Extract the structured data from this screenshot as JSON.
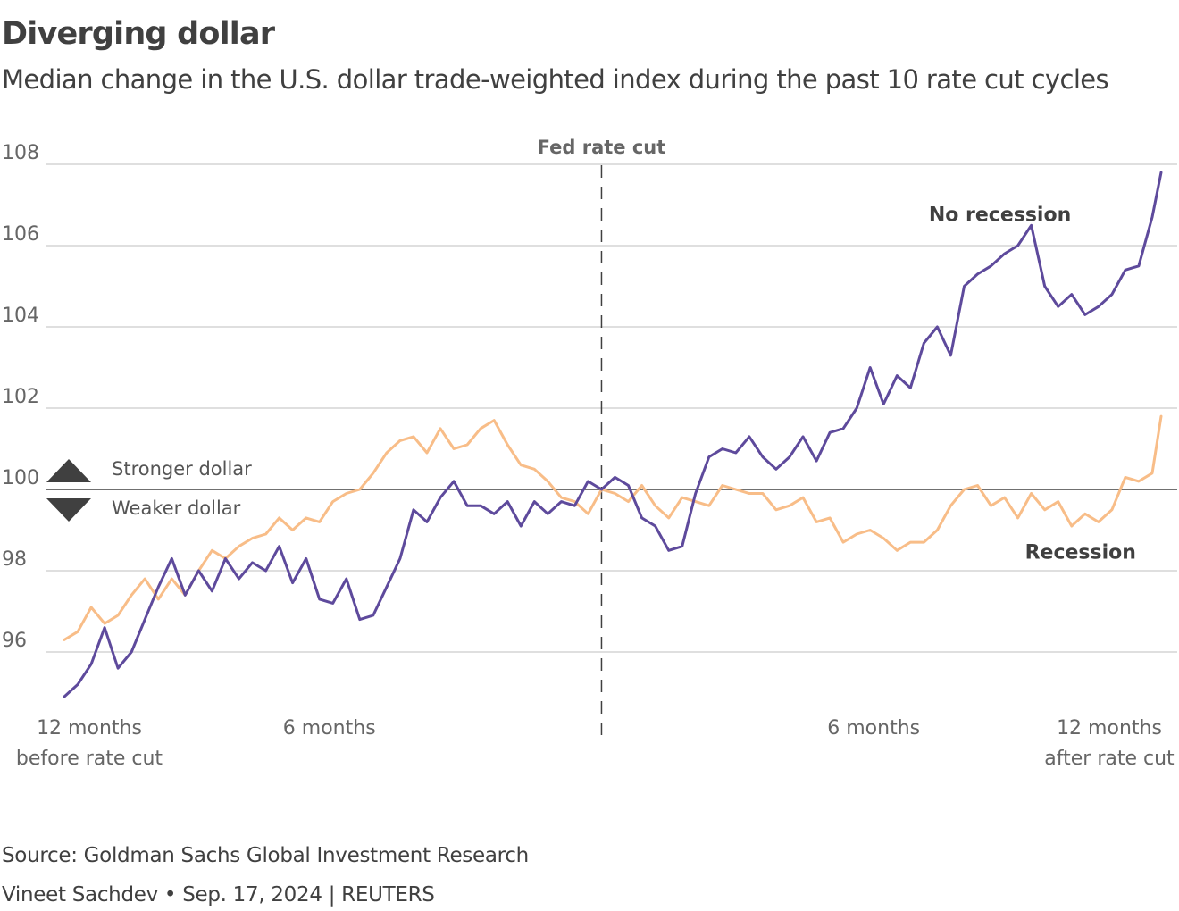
{
  "header": {
    "title": "Diverging dollar",
    "subtitle": "Median change in the U.S. dollar trade-weighted index during the past 10 rate cut cycles"
  },
  "footer": {
    "source": "Source: Goldman Sachs Global Investment Research",
    "byline": "Vineet Sachdev • Sep. 17, 2024 | REUTERS"
  },
  "annotations": {
    "fed_rate_cut": "Fed rate cut",
    "stronger": "Stronger dollar",
    "weaker": "Weaker dollar"
  },
  "chart_data": {
    "type": "line",
    "title": "Diverging dollar",
    "xlabel": "",
    "ylabel": "",
    "xlim": [
      -12,
      12.5
    ],
    "ylim": [
      95,
      108
    ],
    "yticks": [
      96,
      98,
      100,
      102,
      104,
      106,
      108
    ],
    "yticklabels": [
      "96",
      "98",
      "100",
      "102",
      "104",
      "106",
      "108"
    ],
    "baseline": 100,
    "event_x": 0,
    "xticks": [
      {
        "x": -12,
        "line1": "12 months",
        "line2": "before rate cut"
      },
      {
        "x": -6,
        "line1": "6 months",
        "line2": ""
      },
      {
        "x": 6,
        "line1": "6 months",
        "line2": ""
      },
      {
        "x": 12,
        "line1": "12 months",
        "line2": "after rate cut"
      }
    ],
    "series": [
      {
        "name": "No recession",
        "color": "#5e4a9c",
        "x": [
          -12.0,
          -11.7,
          -11.4,
          -11.1,
          -10.8,
          -10.5,
          -10.2,
          -9.9,
          -9.6,
          -9.3,
          -9.0,
          -8.7,
          -8.4,
          -8.1,
          -7.8,
          -7.5,
          -7.2,
          -6.9,
          -6.6,
          -6.3,
          -6.0,
          -5.7,
          -5.4,
          -5.1,
          -4.8,
          -4.5,
          -4.2,
          -3.9,
          -3.6,
          -3.3,
          -3.0,
          -2.7,
          -2.4,
          -2.1,
          -1.8,
          -1.5,
          -1.2,
          -0.9,
          -0.6,
          -0.3,
          0.0,
          0.3,
          0.6,
          0.9,
          1.2,
          1.5,
          1.8,
          2.1,
          2.4,
          2.7,
          3.0,
          3.3,
          3.6,
          3.9,
          4.2,
          4.5,
          4.8,
          5.1,
          5.4,
          5.7,
          6.0,
          6.3,
          6.6,
          6.9,
          7.2,
          7.5,
          7.8,
          8.1,
          8.4,
          8.7,
          9.0,
          9.3,
          9.6,
          9.9,
          10.2,
          10.5,
          10.8,
          11.1,
          11.4,
          11.7,
          12.0,
          12.3,
          12.5
        ],
        "values": [
          94.9,
          95.2,
          95.7,
          96.6,
          95.6,
          96.0,
          96.8,
          97.6,
          98.3,
          97.4,
          98.0,
          97.5,
          98.3,
          97.8,
          98.2,
          98.0,
          98.6,
          97.7,
          98.3,
          97.3,
          97.2,
          97.8,
          96.8,
          96.9,
          97.6,
          98.3,
          99.5,
          99.2,
          99.8,
          100.2,
          99.6,
          99.6,
          99.4,
          99.7,
          99.1,
          99.7,
          99.4,
          99.7,
          99.6,
          100.2,
          100.0,
          100.3,
          100.1,
          99.3,
          99.1,
          98.5,
          98.6,
          99.9,
          100.8,
          101.0,
          100.9,
          101.3,
          100.8,
          100.5,
          100.8,
          101.3,
          100.7,
          101.4,
          101.5,
          102.0,
          103.0,
          102.1,
          102.8,
          102.5,
          103.6,
          104.0,
          103.3,
          105.0,
          105.3,
          105.5,
          105.8,
          106.0,
          106.5,
          105.0,
          104.5,
          104.8,
          104.3,
          104.5,
          104.8,
          105.4,
          105.5,
          106.7,
          107.8
        ]
      },
      {
        "name": "Recession",
        "color": "#f8bd88",
        "x": [
          -12.0,
          -11.7,
          -11.4,
          -11.1,
          -10.8,
          -10.5,
          -10.2,
          -9.9,
          -9.6,
          -9.3,
          -9.0,
          -8.7,
          -8.4,
          -8.1,
          -7.8,
          -7.5,
          -7.2,
          -6.9,
          -6.6,
          -6.3,
          -6.0,
          -5.7,
          -5.4,
          -5.1,
          -4.8,
          -4.5,
          -4.2,
          -3.9,
          -3.6,
          -3.3,
          -3.0,
          -2.7,
          -2.4,
          -2.1,
          -1.8,
          -1.5,
          -1.2,
          -0.9,
          -0.6,
          -0.3,
          0.0,
          0.3,
          0.6,
          0.9,
          1.2,
          1.5,
          1.8,
          2.1,
          2.4,
          2.7,
          3.0,
          3.3,
          3.6,
          3.9,
          4.2,
          4.5,
          4.8,
          5.1,
          5.4,
          5.7,
          6.0,
          6.3,
          6.6,
          6.9,
          7.2,
          7.5,
          7.8,
          8.1,
          8.4,
          8.7,
          9.0,
          9.3,
          9.6,
          9.9,
          10.2,
          10.5,
          10.8,
          11.1,
          11.4,
          11.7,
          12.0,
          12.3,
          12.5
        ],
        "values": [
          96.3,
          96.5,
          97.1,
          96.7,
          96.9,
          97.4,
          97.8,
          97.3,
          97.8,
          97.4,
          98.0,
          98.5,
          98.3,
          98.6,
          98.8,
          98.9,
          99.3,
          99.0,
          99.3,
          99.2,
          99.7,
          99.9,
          100.0,
          100.4,
          100.9,
          101.2,
          101.3,
          100.9,
          101.5,
          101.0,
          101.1,
          101.5,
          101.7,
          101.1,
          100.6,
          100.5,
          100.2,
          99.8,
          99.7,
          99.4,
          100.0,
          99.9,
          99.7,
          100.1,
          99.6,
          99.3,
          99.8,
          99.7,
          99.6,
          100.1,
          100.0,
          99.9,
          99.9,
          99.5,
          99.6,
          99.8,
          99.2,
          99.3,
          98.7,
          98.9,
          99.0,
          98.8,
          98.5,
          98.7,
          98.7,
          99.0,
          99.6,
          100.0,
          100.1,
          99.6,
          99.8,
          99.3,
          99.9,
          99.5,
          99.7,
          99.1,
          99.4,
          99.2,
          99.5,
          100.3,
          100.2,
          100.4,
          101.8
        ]
      }
    ],
    "series_labels": [
      {
        "series": "No recession",
        "text": "No recession",
        "x": 8.9,
        "y": 106.6
      },
      {
        "series": "Recession",
        "text": "Recession",
        "x": 10.7,
        "y": 98.3
      }
    ]
  }
}
